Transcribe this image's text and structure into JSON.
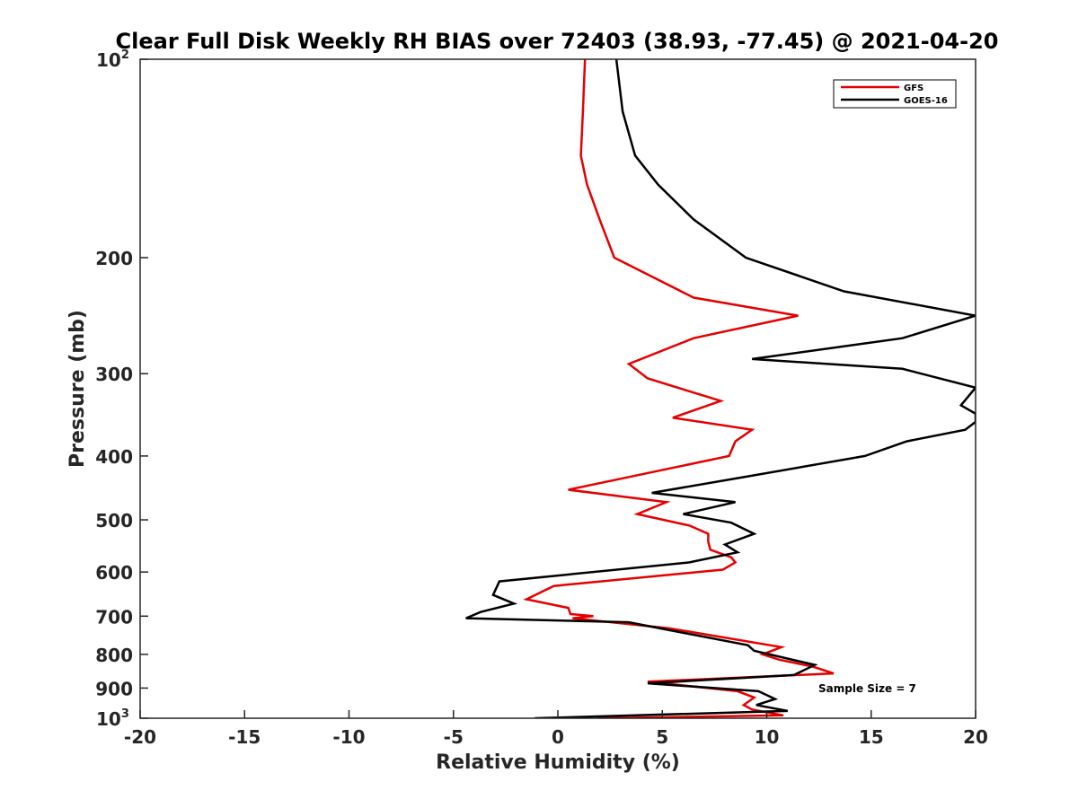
{
  "chart_data": {
    "type": "line",
    "title": "Clear Full Disk Weekly RH BIAS over 72403 (38.93, -77.45) @ 2021-04-20",
    "xlabel": "Relative Humidity (%)",
    "ylabel": "Pressure (mb)",
    "xlim": [
      -20,
      20
    ],
    "ylim": [
      100,
      1000
    ],
    "y_scale": "log",
    "y_reversed": true,
    "grid": false,
    "x_ticks": [
      -20,
      -15,
      -10,
      -5,
      0,
      5,
      10,
      15,
      20
    ],
    "x_tick_labels": [
      "-20",
      "-15",
      "-10",
      "-5",
      "0",
      "5",
      "10",
      "15",
      "20"
    ],
    "y_ticks": [
      {
        "value": 100,
        "base": "10",
        "exp": "2"
      },
      {
        "value": 200,
        "label": "200"
      },
      {
        "value": 300,
        "label": "300"
      },
      {
        "value": 400,
        "label": "400"
      },
      {
        "value": 500,
        "label": "500"
      },
      {
        "value": 600,
        "label": "600"
      },
      {
        "value": 700,
        "label": "700"
      },
      {
        "value": 800,
        "label": "800"
      },
      {
        "value": 900,
        "label": "900"
      },
      {
        "value": 1000,
        "base": "10",
        "exp": "3"
      }
    ],
    "legend_position": "top-right",
    "annotation": "Sample Size = 7",
    "series": [
      {
        "name": "GFS",
        "color": "#e50000",
        "x": [
          1.3,
          1.2,
          1.1,
          1.4,
          2.0,
          2.7,
          6.5,
          11.5,
          6.5,
          3.4,
          4.3,
          7.8,
          5.5,
          9.3,
          8.5,
          8.2,
          0.5,
          5.2,
          3.8,
          6.3,
          7.2,
          7.2,
          7.3,
          8.3,
          8.5,
          7.9,
          -0.2,
          -1.5,
          0.5,
          0.6,
          1.7,
          0.7,
          5.3,
          10.7,
          9.8,
          10.6,
          12.2,
          13.2,
          4.3,
          8.6,
          9.4,
          8.9,
          9.3,
          10.8,
          1.9
        ],
        "y": [
          100,
          120,
          140,
          155,
          175,
          200,
          230,
          245,
          265,
          290,
          305,
          330,
          350,
          365,
          380,
          400,
          450,
          470,
          490,
          510,
          525,
          540,
          555,
          570,
          580,
          595,
          630,
          660,
          680,
          695,
          700,
          705,
          730,
          780,
          800,
          815,
          835,
          855,
          880,
          910,
          930,
          955,
          970,
          990,
          1000
        ]
      },
      {
        "name": "GOES-16",
        "color": "#000000",
        "x": [
          2.8,
          3.1,
          3.7,
          4.8,
          6.5,
          9.0,
          13.7,
          20.0,
          16.5,
          9.3,
          16.5,
          20.0,
          19.3,
          20.0,
          20.0,
          19.5,
          16.7,
          14.7,
          9.0,
          4.5,
          8.5,
          6.0,
          8.3,
          9.4,
          8.0,
          8.6,
          6.3,
          -2.8,
          -3.1,
          -2.1,
          -3.7,
          -4.4,
          3.4,
          6.3,
          9.1,
          9.4,
          10.5,
          12.3,
          11.3,
          4.3,
          9.6,
          10.4,
          9.5,
          11.0,
          -1.1
        ],
        "y": [
          100,
          120,
          140,
          155,
          175,
          200,
          225,
          245,
          265,
          285,
          295,
          315,
          335,
          345,
          355,
          365,
          380,
          400,
          430,
          455,
          470,
          490,
          505,
          525,
          545,
          560,
          580,
          620,
          650,
          670,
          690,
          705,
          715,
          745,
          775,
          790,
          805,
          830,
          860,
          885,
          910,
          935,
          955,
          975,
          1000
        ]
      }
    ]
  }
}
